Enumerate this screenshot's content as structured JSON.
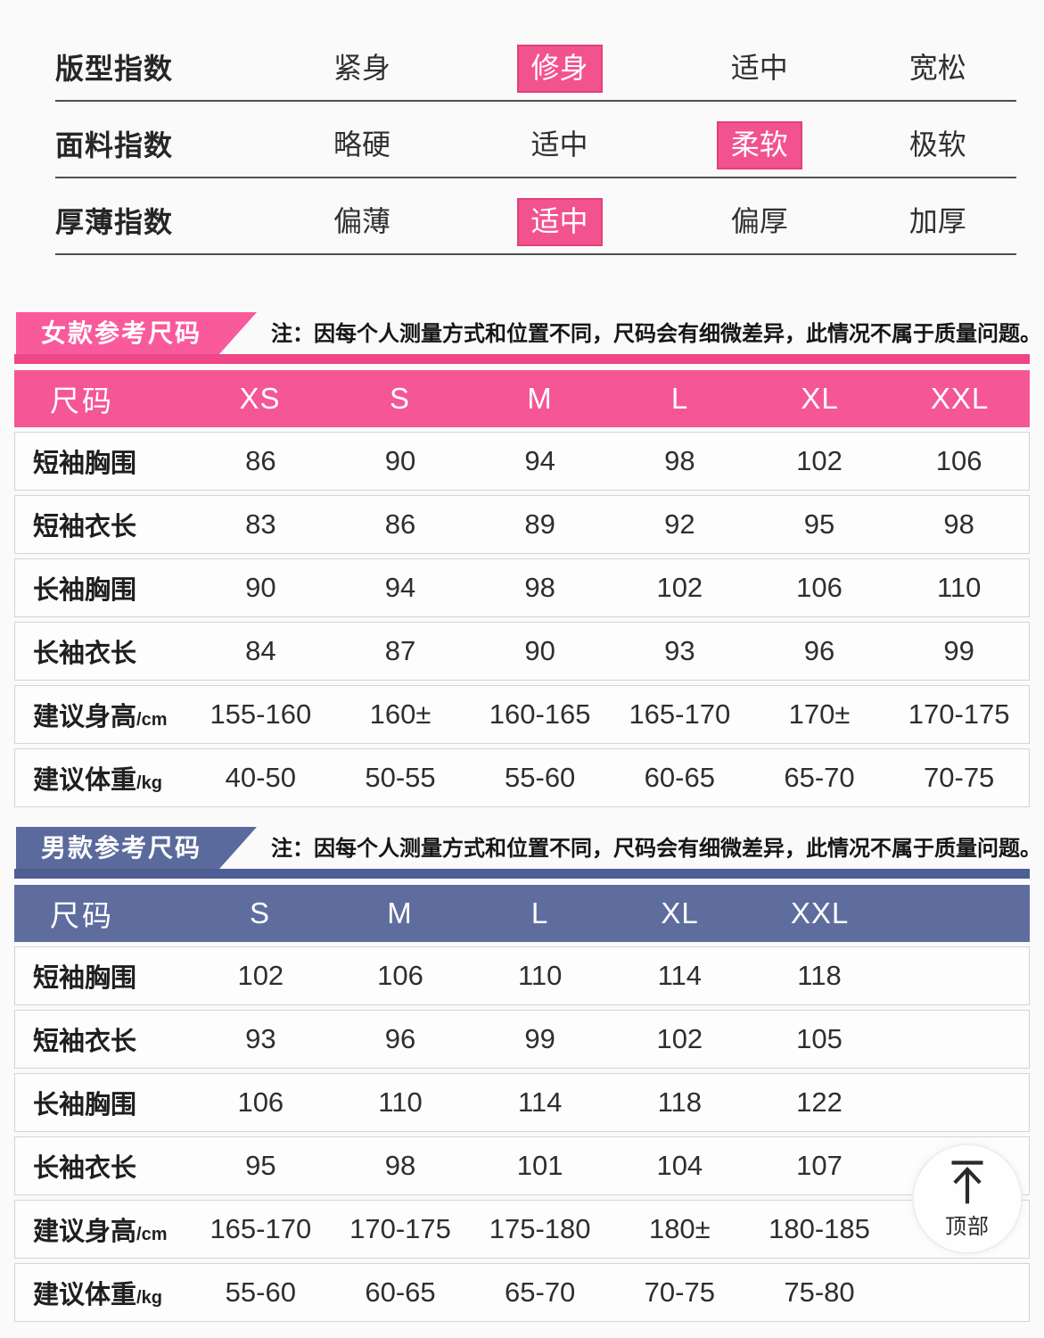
{
  "colors": {
    "women_pink": "#f45696",
    "women_pink_deep": "#ee4686",
    "women_pink_tab": "#f85a9b",
    "men_blue": "#5f6d9e",
    "men_blue_deep": "#4e5d93",
    "men_blue_tab": "#5b6a9c",
    "highlight_pink": "#f2538e"
  },
  "index_section": {
    "rows": [
      {
        "label": "版型指数",
        "options": [
          {
            "text": "紧身",
            "selected": false
          },
          {
            "text": "修身",
            "selected": true
          },
          {
            "text": "适中",
            "selected": false
          },
          {
            "text": "宽松",
            "selected": false
          }
        ]
      },
      {
        "label": "面料指数",
        "options": [
          {
            "text": "略硬",
            "selected": false
          },
          {
            "text": "适中",
            "selected": false
          },
          {
            "text": "柔软",
            "selected": true
          },
          {
            "text": "极软",
            "selected": false
          }
        ]
      },
      {
        "label": "厚薄指数",
        "options": [
          {
            "text": "偏薄",
            "selected": false
          },
          {
            "text": "适中",
            "selected": true
          },
          {
            "text": "偏厚",
            "selected": false
          },
          {
            "text": "加厚",
            "selected": false
          }
        ]
      }
    ]
  },
  "women": {
    "tab": "女款参考尺码",
    "note": "注：因每个人测量方式和位置不同，尺码会有细微差异，此情况不属于质量问题。",
    "header": [
      "尺码",
      "XS",
      "S",
      "M",
      "L",
      "XL",
      "XXL"
    ],
    "rows": [
      {
        "label": "短袖胸围",
        "unit": "",
        "values": [
          "86",
          "90",
          "94",
          "98",
          "102",
          "106"
        ]
      },
      {
        "label": "短袖衣长",
        "unit": "",
        "values": [
          "83",
          "86",
          "89",
          "92",
          "95",
          "98"
        ]
      },
      {
        "label": "长袖胸围",
        "unit": "",
        "values": [
          "90",
          "94",
          "98",
          "102",
          "106",
          "110"
        ]
      },
      {
        "label": "长袖衣长",
        "unit": "",
        "values": [
          "84",
          "87",
          "90",
          "93",
          "96",
          "99"
        ]
      },
      {
        "label": "建议身高",
        "unit": "/cm",
        "values": [
          "155-160",
          "160±",
          "160-165",
          "165-170",
          "170±",
          "170-175"
        ]
      },
      {
        "label": "建议体重",
        "unit": "/kg",
        "values": [
          "40-50",
          "50-55",
          "55-60",
          "60-65",
          "65-70",
          "70-75"
        ]
      }
    ]
  },
  "men": {
    "tab": "男款参考尺码",
    "note": "注：因每个人测量方式和位置不同，尺码会有细微差异，此情况不属于质量问题。",
    "header": [
      "尺码",
      "S",
      "M",
      "L",
      "XL",
      "XXL"
    ],
    "rows": [
      {
        "label": "短袖胸围",
        "unit": "",
        "values": [
          "102",
          "106",
          "110",
          "114",
          "118"
        ]
      },
      {
        "label": "短袖衣长",
        "unit": "",
        "values": [
          "93",
          "96",
          "99",
          "102",
          "105"
        ]
      },
      {
        "label": "长袖胸围",
        "unit": "",
        "values": [
          "106",
          "110",
          "114",
          "118",
          "122"
        ]
      },
      {
        "label": "长袖衣长",
        "unit": "",
        "values": [
          "95",
          "98",
          "101",
          "104",
          "107"
        ]
      },
      {
        "label": "建议身高",
        "unit": "/cm",
        "values": [
          "165-170",
          "170-175",
          "175-180",
          "180±",
          "180-185"
        ]
      },
      {
        "label": "建议体重",
        "unit": "/kg",
        "values": [
          "55-60",
          "60-65",
          "65-70",
          "70-75",
          "75-80"
        ]
      }
    ]
  },
  "back_to_top": {
    "label": "顶部"
  }
}
